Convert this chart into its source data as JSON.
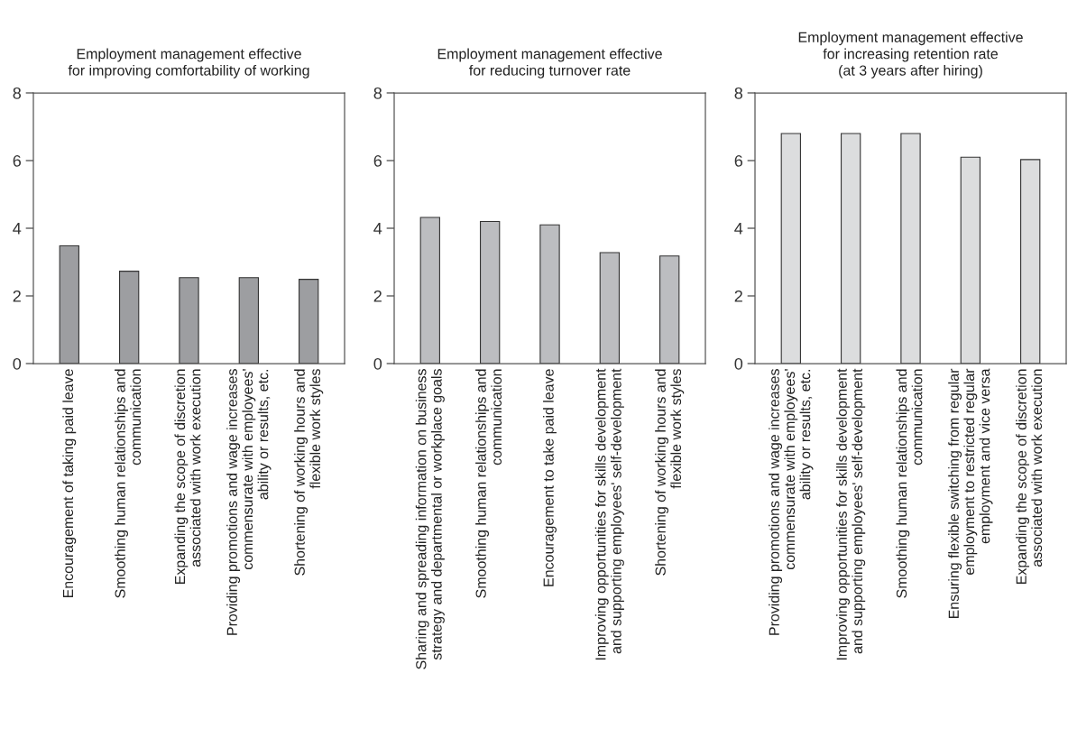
{
  "chart_data": [
    {
      "type": "bar",
      "title": "Employment management effective\nfor improving comfortability of working",
      "categories": [
        "Encouragement of taking paid leave",
        "Smoothing human relationships and\ncommunication",
        "Expanding the scope of discretion\nassociated with work execution",
        "Providing promotions and wage increases\ncommensurate with employees'\nability or results, etc.",
        "Shortening of working hours and\nflexible work styles"
      ],
      "values": [
        3.48,
        2.73,
        2.54,
        2.54,
        2.49
      ],
      "color": "#9d9ea1",
      "ylim": [
        0,
        8
      ],
      "yticks": [
        0,
        2,
        4,
        6,
        8
      ],
      "grid": false
    },
    {
      "type": "bar",
      "title": "Employment management effective\nfor reducing turnover rate",
      "categories": [
        "Sharing and spreading information on business\nstrategy and departmental or workplace goals",
        "Smoothing human relationships and\ncommunication",
        "Encouragement to take paid leave",
        "Improving opportunities for skills development\nand supporting employees' self-development",
        "Shortening of working hours and\nflexible work styles"
      ],
      "values": [
        4.32,
        4.2,
        4.1,
        3.28,
        3.18
      ],
      "color": "#bcbdc0",
      "ylim": [
        0,
        8
      ],
      "yticks": [
        0,
        2,
        4,
        6,
        8
      ],
      "grid": false
    },
    {
      "type": "bar",
      "title": "Employment management effective\nfor increasing retention rate\n(at 3 years after hiring)",
      "categories": [
        "Providing promotions and wage increases\ncommensurate with employees'\nability or results, etc.",
        "Improving opportunities for skills development\nand supporting employees' self-development",
        "Smoothing human relationships and\ncommunication",
        "Ensuring flexible switching from regular\nemployment to restricted regular\nemployment and vice versa",
        "Expanding the scope of discretion\nassociated with work execution"
      ],
      "values": [
        6.8,
        6.8,
        6.8,
        6.1,
        6.03
      ],
      "color": "#dcddde",
      "ylim": [
        0,
        8
      ],
      "yticks": [
        0,
        2,
        4,
        6,
        8
      ],
      "grid": false
    }
  ]
}
